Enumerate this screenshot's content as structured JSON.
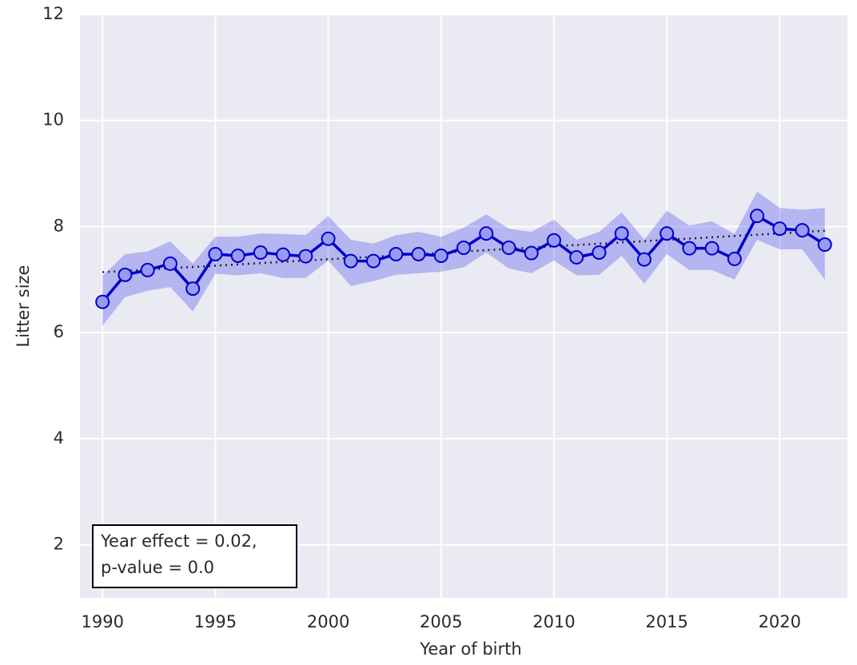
{
  "chart_data": {
    "type": "line",
    "xlabel": "Year of birth",
    "ylabel": "Litter size",
    "x": [
      1990,
      1991,
      1992,
      1993,
      1994,
      1995,
      1996,
      1997,
      1998,
      1999,
      2000,
      2001,
      2002,
      2003,
      2004,
      2005,
      2006,
      2007,
      2008,
      2009,
      2010,
      2011,
      2012,
      2013,
      2014,
      2015,
      2016,
      2017,
      2018,
      2019,
      2020,
      2021,
      2022
    ],
    "series": [
      {
        "color": "#0000cc",
        "band_color": "#3a3af0",
        "marker_color": "#9a9af0",
        "values": [
          6.58,
          7.09,
          7.18,
          7.3,
          6.83,
          7.48,
          7.45,
          7.51,
          7.47,
          7.44,
          7.77,
          7.35,
          7.35,
          7.48,
          7.48,
          7.45,
          7.6,
          7.87,
          7.6,
          7.5,
          7.74,
          7.42,
          7.51,
          7.87,
          7.38,
          7.87,
          7.59,
          7.59,
          7.39,
          8.2,
          7.96,
          7.93,
          7.66
        ],
        "lower": [
          6.13,
          6.67,
          6.79,
          6.86,
          6.4,
          7.11,
          7.08,
          7.12,
          7.03,
          7.03,
          7.36,
          6.88,
          6.97,
          7.09,
          7.12,
          7.15,
          7.23,
          7.51,
          7.21,
          7.12,
          7.36,
          7.08,
          7.09,
          7.45,
          6.92,
          7.48,
          7.18,
          7.18,
          7.0,
          7.75,
          7.57,
          7.57,
          7.0
        ],
        "upper": [
          7.07,
          7.48,
          7.53,
          7.72,
          7.3,
          7.81,
          7.81,
          7.87,
          7.86,
          7.84,
          8.2,
          7.75,
          7.68,
          7.84,
          7.9,
          7.81,
          7.98,
          8.23,
          7.96,
          7.9,
          8.13,
          7.75,
          7.9,
          8.27,
          7.75,
          8.3,
          8.02,
          8.1,
          7.86,
          8.66,
          8.35,
          8.32,
          8.35
        ]
      }
    ],
    "trend": {
      "x": [
        1990,
        2022
      ],
      "values": [
        7.14,
        7.92
      ],
      "color": "#222222"
    },
    "annotation": [
      "Year effect = 0.02,",
      "p-value = 0.0"
    ],
    "xlim": [
      1989,
      2023
    ],
    "ylim": [
      1,
      12
    ],
    "xticks": [
      1990,
      1995,
      2000,
      2005,
      2010,
      2015,
      2020
    ],
    "yticks": [
      2,
      4,
      6,
      8,
      10,
      12
    ],
    "grid": true
  }
}
